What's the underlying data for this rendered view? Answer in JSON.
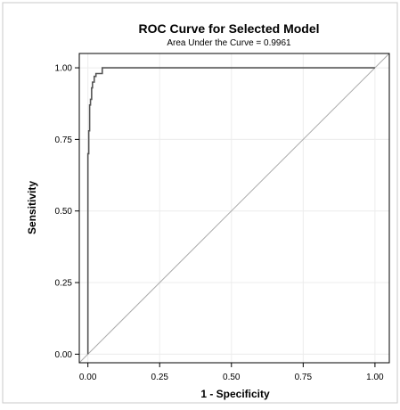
{
  "chart_data": {
    "type": "line",
    "title": "ROC Curve for Selected Model",
    "subtitle": "Area Under the Curve = 0.9961",
    "xlabel": "1 - Specificity",
    "ylabel": "Sensitivity",
    "xlim": [
      -0.03,
      1.05
    ],
    "ylim": [
      -0.03,
      1.05
    ],
    "x_ticks": [
      0.0,
      0.25,
      0.5,
      0.75,
      1.0
    ],
    "x_tick_labels": [
      "0.00",
      "0.25",
      "0.50",
      "0.75",
      "1.00"
    ],
    "y_ticks": [
      0.0,
      0.25,
      0.5,
      0.75,
      1.0
    ],
    "y_tick_labels": [
      "0.00",
      "0.25",
      "0.50",
      "0.75",
      "1.00"
    ],
    "grid": true,
    "series": [
      {
        "color": "#555555",
        "x": [
          0.0,
          0.0,
          0.003,
          0.003,
          0.006,
          0.006,
          0.009,
          0.009,
          0.013,
          0.013,
          0.016,
          0.016,
          0.022,
          0.022,
          0.028,
          0.028,
          0.05,
          0.05,
          1.0
        ],
        "y": [
          0.0,
          0.7,
          0.7,
          0.78,
          0.78,
          0.87,
          0.87,
          0.89,
          0.89,
          0.93,
          0.93,
          0.95,
          0.95,
          0.97,
          0.97,
          0.98,
          0.98,
          1.0,
          1.0
        ]
      },
      {
        "color": "#aaaaaa",
        "x": [
          -0.03,
          1.05
        ],
        "y": [
          -0.03,
          1.05
        ]
      }
    ]
  }
}
